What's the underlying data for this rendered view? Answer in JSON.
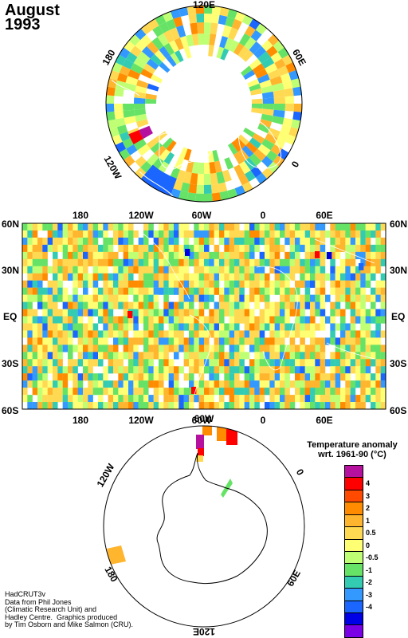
{
  "title": {
    "month": "August",
    "year": "1993"
  },
  "north_map": {
    "lon_labels": [
      "120E",
      "60E",
      "0",
      "120W",
      "180"
    ]
  },
  "world_map": {
    "lon_labels": [
      "180",
      "120W",
      "60W",
      "0",
      "60E"
    ],
    "lat_labels": [
      "60N",
      "30N",
      "EQ",
      "30S",
      "60S"
    ]
  },
  "south_map": {
    "lon_labels": [
      "60W",
      "0",
      "60E",
      "120E",
      "180",
      "120W"
    ]
  },
  "legend": {
    "title_line1": "Temperature anomaly",
    "title_line2": "wrt. 1961-90  (°C)",
    "colors": [
      "#b5109e",
      "#ff0000",
      "#ff4a00",
      "#ff8c00",
      "#ffb52e",
      "#ffd952",
      "#ffff73",
      "#bfff73",
      "#66e366",
      "#33ccb3",
      "#3399ff",
      "#1a66ff",
      "#0000e6",
      "#7a00e6"
    ],
    "tick_labels": [
      "4",
      "3",
      "2",
      "1",
      "0.5",
      "0",
      "-0.5",
      "-1",
      "-2",
      "-3",
      "-4"
    ]
  },
  "credit": {
    "line1": "HadCRUT3v",
    "line2": "Data from Phil Jones",
    "line3": "(Climatic Research Unit) and",
    "line4": "Hadley Centre.  Graphics produced",
    "line5": "by Tim Osborn and Mike Salmon (CRU)."
  }
}
